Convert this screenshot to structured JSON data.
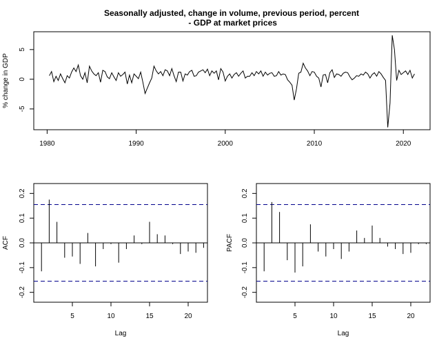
{
  "chart_data": [
    {
      "type": "line",
      "title_line1": "Seasonally adjusted, change in volume, previous period, percent",
      "title_line2": " - GDP at market prices",
      "ylabel": "% change in GDP",
      "xlabel": "",
      "xlim": [
        1978.5,
        2023.0
      ],
      "ylim": [
        -8.5,
        8.0
      ],
      "xticks": [
        1980,
        1990,
        2000,
        2010,
        2020
      ],
      "yticks": [
        -5,
        0,
        5
      ],
      "x": [
        1980.25,
        1980.5,
        1980.75,
        1981.0,
        1981.25,
        1981.5,
        1981.75,
        1982.0,
        1982.25,
        1982.5,
        1982.75,
        1983.0,
        1983.25,
        1983.5,
        1983.75,
        1984.0,
        1984.25,
        1984.5,
        1984.75,
        1985.0,
        1985.25,
        1985.5,
        1985.75,
        1986.0,
        1986.25,
        1986.5,
        1986.75,
        1987.0,
        1987.25,
        1987.5,
        1987.75,
        1988.0,
        1988.25,
        1988.5,
        1988.75,
        1989.0,
        1989.25,
        1989.5,
        1989.75,
        1990.0,
        1990.25,
        1990.5,
        1990.75,
        1991.0,
        1991.25,
        1991.5,
        1991.75,
        1992.0,
        1992.25,
        1992.5,
        1992.75,
        1993.0,
        1993.25,
        1993.5,
        1993.75,
        1994.0,
        1994.25,
        1994.5,
        1994.75,
        1995.0,
        1995.25,
        1995.5,
        1995.75,
        1996.0,
        1996.25,
        1996.5,
        1996.75,
        1997.0,
        1997.25,
        1997.5,
        1997.75,
        1998.0,
        1998.25,
        1998.5,
        1998.75,
        1999.0,
        1999.25,
        1999.5,
        1999.75,
        2000.0,
        2000.25,
        2000.5,
        2000.75,
        2001.0,
        2001.25,
        2001.5,
        2001.75,
        2002.0,
        2002.25,
        2002.5,
        2002.75,
        2003.0,
        2003.25,
        2003.5,
        2003.75,
        2004.0,
        2004.25,
        2004.5,
        2004.75,
        2005.0,
        2005.25,
        2005.5,
        2005.75,
        2006.0,
        2006.25,
        2006.5,
        2006.75,
        2007.0,
        2007.25,
        2007.5,
        2007.75,
        2008.0,
        2008.25,
        2008.5,
        2008.75,
        2009.0,
        2009.25,
        2009.5,
        2009.75,
        2010.0,
        2010.25,
        2010.5,
        2010.75,
        2011.0,
        2011.25,
        2011.5,
        2011.75,
        2012.0,
        2012.25,
        2012.5,
        2012.75,
        2013.0,
        2013.25,
        2013.5,
        2013.75,
        2014.0,
        2014.25,
        2014.5,
        2014.75,
        2015.0,
        2015.25,
        2015.5,
        2015.75,
        2016.0,
        2016.25,
        2016.5,
        2016.75,
        2017.0,
        2017.25,
        2017.5,
        2017.75,
        2018.0,
        2018.25,
        2018.5,
        2018.75,
        2019.0,
        2019.25,
        2019.5,
        2019.75,
        2020.0,
        2020.25,
        2020.5,
        2020.75,
        2021.0,
        2021.25
      ],
      "values": [
        0.6,
        1.3,
        -0.4,
        0.5,
        -0.2,
        0.9,
        0.1,
        -0.6,
        0.6,
        0.2,
        1.2,
        1.9,
        1.3,
        2.4,
        0.6,
        0.0,
        1.1,
        -0.6,
        2.2,
        1.4,
        0.9,
        0.6,
        1.1,
        -0.5,
        1.5,
        1.3,
        0.4,
        0.1,
        1.1,
        0.4,
        -0.2,
        1.1,
        0.5,
        0.8,
        1.2,
        -0.8,
        0.7,
        -0.6,
        0.9,
        0.5,
        0.1,
        1.2,
        -0.5,
        -2.4,
        -1.5,
        -0.6,
        0.2,
        2.2,
        1.4,
        0.9,
        1.3,
        0.6,
        1.6,
        1.4,
        0.6,
        1.8,
        0.6,
        -0.4,
        1.2,
        1.2,
        -0.3,
        0.9,
        0.7,
        1.3,
        1.5,
        0.5,
        0.6,
        1.2,
        1.4,
        1.6,
        1.1,
        1.7,
        0.6,
        1.4,
        1.0,
        1.4,
        -0.1,
        1.8,
        1.2,
        -0.3,
        0.5,
        0.9,
        0.2,
        0.8,
        1.1,
        0.5,
        1.0,
        1.4,
        0.2,
        0.5,
        0.5,
        1.1,
        0.6,
        1.3,
        0.9,
        1.4,
        0.5,
        1.2,
        0.7,
        1.0,
        1.1,
        0.5,
        0.6,
        1.3,
        0.7,
        0.9,
        0.8,
        -0.1,
        -0.5,
        -1.0,
        -3.5,
        -1.6,
        1.0,
        1.2,
        2.7,
        1.9,
        1.4,
        0.6,
        1.3,
        1.2,
        0.5,
        0.2,
        -1.3,
        0.7,
        0.8,
        -0.6,
        1.1,
        1.6,
        0.3,
        0.9,
        0.8,
        0.5,
        1.0,
        1.2,
        1.1,
        0.4,
        -0.1,
        0.2,
        0.6,
        0.5,
        0.9,
        0.7,
        1.2,
        0.9,
        0.2,
        0.8,
        1.1,
        0.5,
        1.3,
        0.9,
        0.3,
        -0.2,
        -8.1,
        -4.0,
        7.4,
        5.0,
        -0.2,
        1.5,
        0.8,
        1.1,
        1.4,
        0.8,
        1.5,
        0.2,
        0.9
      ]
    },
    {
      "type": "bar",
      "title": "",
      "ylabel": "ACF",
      "xlabel": "Lag",
      "xlim": [
        0,
        22.5
      ],
      "ylim": [
        -0.24,
        0.24
      ],
      "xticks": [
        5,
        10,
        15,
        20
      ],
      "yticks": [
        -0.2,
        -0.1,
        0.0,
        0.1,
        0.2
      ],
      "ci": 0.155,
      "categories": [
        1,
        2,
        3,
        4,
        5,
        6,
        7,
        8,
        9,
        10,
        11,
        12,
        13,
        14,
        15,
        16,
        17,
        18,
        19,
        20,
        21,
        22
      ],
      "values": [
        -0.115,
        0.175,
        0.085,
        -0.06,
        -0.055,
        -0.085,
        0.04,
        -0.095,
        -0.025,
        -0.005,
        -0.08,
        -0.025,
        0.03,
        -0.005,
        0.085,
        0.035,
        0.03,
        -0.005,
        -0.045,
        -0.035,
        -0.04,
        -0.02
      ]
    },
    {
      "type": "bar",
      "title": "",
      "ylabel": "PACF",
      "xlabel": "Lag",
      "xlim": [
        0,
        22.5
      ],
      "ylim": [
        -0.24,
        0.24
      ],
      "xticks": [
        5,
        10,
        15,
        20
      ],
      "yticks": [
        -0.2,
        -0.1,
        0.0,
        0.1,
        0.2
      ],
      "ci": 0.155,
      "categories": [
        1,
        2,
        3,
        4,
        5,
        6,
        7,
        8,
        9,
        10,
        11,
        12,
        13,
        14,
        15,
        16,
        17,
        18,
        19,
        20,
        21,
        22
      ],
      "values": [
        -0.115,
        0.165,
        0.125,
        -0.07,
        -0.12,
        -0.095,
        0.075,
        -0.035,
        -0.055,
        -0.025,
        -0.065,
        -0.035,
        0.05,
        0.02,
        0.07,
        0.02,
        -0.015,
        -0.025,
        -0.045,
        -0.04,
        -0.005,
        -0.005
      ]
    }
  ]
}
